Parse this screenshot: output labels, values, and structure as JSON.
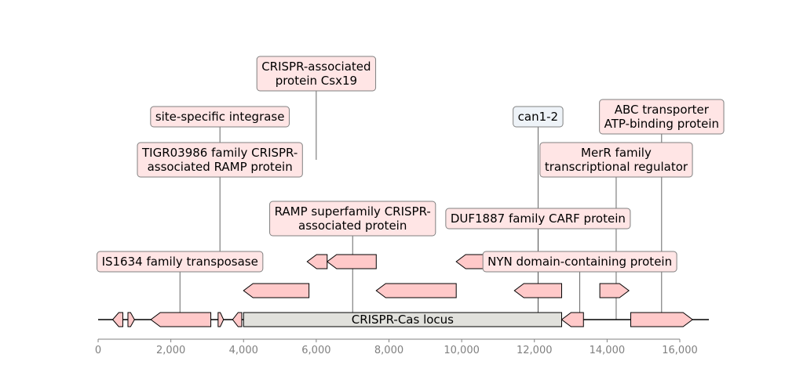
{
  "chart_data": {
    "type": "gene-map",
    "title": "",
    "axis": {
      "min": 0,
      "max": 16800,
      "ticks": [
        0,
        2000,
        4000,
        6000,
        8000,
        10000,
        12000,
        14000,
        16000
      ],
      "tick_labels": [
        "0",
        "2,000",
        "4,000",
        "6,000",
        "8,000",
        "10,000",
        "12,000",
        "14,000",
        "16,000"
      ]
    },
    "colors": {
      "feature_fill": "#ffc9c9",
      "highlight_fill": "#3d6db5",
      "locus_fill": "#e1e1dc",
      "label_fill": "#ffe5e5",
      "highlight_label_fill": "#eef3f8",
      "outline": "#000000",
      "label_border": "#808080"
    },
    "locus": {
      "label": "CRISPR-Cas locus",
      "start": 4000,
      "end": 12750
    },
    "features": [
      {
        "start": 400,
        "end": 680,
        "strand": -1,
        "level": 0
      },
      {
        "start": 820,
        "end": 1000,
        "strand": 1,
        "level": 0
      },
      {
        "start": 1450,
        "end": 3100,
        "strand": -1,
        "level": 0
      },
      {
        "start": 3300,
        "end": 3450,
        "strand": 1,
        "level": 0
      },
      {
        "start": 3700,
        "end": 3950,
        "strand": -1,
        "level": 0
      },
      {
        "start": 12750,
        "end": 13350,
        "strand": -1,
        "level": 0
      },
      {
        "start": 14650,
        "end": 16350,
        "strand": 1,
        "level": 0
      },
      {
        "start": 4000,
        "end": 5800,
        "strand": -1,
        "level": 1
      },
      {
        "start": 7650,
        "end": 9850,
        "strand": -1,
        "level": 1
      },
      {
        "start": 11450,
        "end": 12750,
        "strand": -1,
        "level": 1
      },
      {
        "start": 13800,
        "end": 14600,
        "strand": 1,
        "level": 1
      },
      {
        "start": 5750,
        "end": 6300,
        "strand": -1,
        "level": 2
      },
      {
        "start": 6300,
        "end": 7650,
        "strand": -1,
        "level": 2
      },
      {
        "start": 9850,
        "end": 11450,
        "strand": -1,
        "level": 2
      },
      {
        "start": 11450,
        "end": 12750,
        "strand": -1,
        "level": 2,
        "highlight": true
      }
    ],
    "labels": [
      {
        "text": [
          "IS1634 family transposase"
        ],
        "x": 2250,
        "level": 0
      },
      {
        "text": [
          "TIGR03986 family CRISPR-",
          "associated RAMP protein"
        ],
        "x": 3350,
        "level": 2,
        "line_from_level": 0
      },
      {
        "text": [
          "site-specific integrase"
        ],
        "x": 3350,
        "level": 3,
        "line_from_level": 2
      },
      {
        "text": [
          "CRISPR-associated",
          "protein Csx19"
        ],
        "x": 6000,
        "level": 4,
        "line_from_level": 2
      },
      {
        "text": [
          "RAMP superfamily CRISPR-",
          "associated protein"
        ],
        "x": 7000,
        "level": 1
      },
      {
        "text": [
          "can1-2"
        ],
        "x": 12100,
        "level": 3,
        "highlight": true
      },
      {
        "text": [
          "DUF1887 family CARF protein"
        ],
        "x": 12100,
        "level": 1
      },
      {
        "text": [
          "NYN domain-containing protein"
        ],
        "x": 13250,
        "level": 0
      },
      {
        "text": [
          "MerR family",
          "transcriptional regulator"
        ],
        "x": 14250,
        "level": 2
      },
      {
        "text": [
          "ABC transporter",
          "ATP-binding protein"
        ],
        "x": 15500,
        "level": 3
      }
    ]
  }
}
